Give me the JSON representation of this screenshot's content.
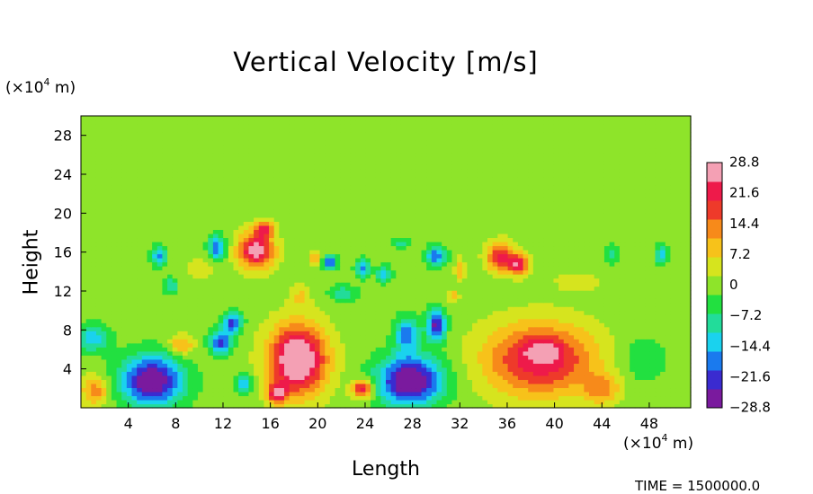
{
  "chart_data": {
    "type": "heatmap",
    "title": "Vertical Velocity [m/s]",
    "xlabel": "Length",
    "ylabel": "Height",
    "x_unit": {
      "prefix": "(×10",
      "exp": "4",
      "suffix": " m)"
    },
    "y_unit": {
      "prefix": "(×10",
      "exp": "4",
      "suffix": " m)"
    },
    "xlim": [
      0,
      51.5
    ],
    "ylim": [
      0,
      30
    ],
    "x_ticks": [
      4,
      8,
      12,
      16,
      20,
      24,
      28,
      32,
      36,
      40,
      44,
      48
    ],
    "x_tick_labels": [
      "4",
      "8",
      "12",
      "16",
      "20",
      "24",
      "28",
      "32",
      "36",
      "40",
      "44",
      "48"
    ],
    "y_ticks": [
      4,
      8,
      12,
      16,
      20,
      24,
      28
    ],
    "y_tick_labels": [
      "4",
      "8",
      "12",
      "16",
      "20",
      "24",
      "28"
    ],
    "colorbar": {
      "min": -28.8,
      "max": 28.8,
      "tick_values": [
        28.8,
        21.6,
        14.4,
        7.2,
        0,
        -7.2,
        -14.4,
        -21.6,
        -28.8
      ],
      "tick_labels": [
        "28.8",
        "21.6",
        "14.4",
        "7.2",
        "0",
        "−7.2",
        "−14.4",
        "−21.6",
        "−28.8"
      ],
      "colors": [
        "#7a1a9e",
        "#3a2bd0",
        "#1a7aee",
        "#1ad2ee",
        "#22dc9a",
        "#22e040",
        "#8ee42a",
        "#d6e41e",
        "#f7c21a",
        "#f78a1a",
        "#ee3a2a",
        "#ee1a4a",
        "#f4a0b4"
      ]
    },
    "background_value": 0,
    "features": [
      {
        "x": 1.2,
        "y": 1.8,
        "amp": 14,
        "sx": 1.2,
        "sy": 1.5
      },
      {
        "x": 6.0,
        "y": 2.8,
        "amp": -30,
        "sx": 2.6,
        "sy": 2.6
      },
      {
        "x": 8.5,
        "y": 6.5,
        "amp": 13,
        "sx": 1.0,
        "sy": 1.0
      },
      {
        "x": 11.8,
        "y": 6.8,
        "amp": -22,
        "sx": 0.9,
        "sy": 1.2
      },
      {
        "x": 12.8,
        "y": 8.8,
        "amp": -22,
        "sx": 0.8,
        "sy": 1.0
      },
      {
        "x": 13.8,
        "y": 2.5,
        "amp": -16,
        "sx": 0.7,
        "sy": 1.0
      },
      {
        "x": 18.3,
        "y": 5.0,
        "amp": 34,
        "sx": 2.4,
        "sy": 3.5
      },
      {
        "x": 16.6,
        "y": 1.5,
        "amp": 22,
        "sx": 0.8,
        "sy": 1.0
      },
      {
        "x": 14.8,
        "y": 16.2,
        "amp": 28,
        "sx": 1.5,
        "sy": 1.8
      },
      {
        "x": 15.5,
        "y": 18.4,
        "amp": 20,
        "sx": 0.8,
        "sy": 0.8
      },
      {
        "x": 11.5,
        "y": 16.5,
        "amp": -19,
        "sx": 0.7,
        "sy": 1.3
      },
      {
        "x": 6.6,
        "y": 15.6,
        "amp": -17,
        "sx": 0.6,
        "sy": 1.0
      },
      {
        "x": 7.6,
        "y": 12.6,
        "amp": -11,
        "sx": 0.6,
        "sy": 0.8
      },
      {
        "x": 21.0,
        "y": 15.0,
        "amp": -20,
        "sx": 0.6,
        "sy": 0.7
      },
      {
        "x": 19.8,
        "y": 15.4,
        "amp": 13,
        "sx": 0.5,
        "sy": 0.7
      },
      {
        "x": 23.8,
        "y": 14.4,
        "amp": -17,
        "sx": 0.6,
        "sy": 0.9
      },
      {
        "x": 25.6,
        "y": 13.8,
        "amp": -15,
        "sx": 0.6,
        "sy": 0.8
      },
      {
        "x": 30.0,
        "y": 15.6,
        "amp": -20,
        "sx": 0.8,
        "sy": 1.0
      },
      {
        "x": 22.2,
        "y": 11.8,
        "amp": -10,
        "sx": 1.2,
        "sy": 0.8
      },
      {
        "x": 23.8,
        "y": 2.0,
        "amp": 24,
        "sx": 0.9,
        "sy": 0.9
      },
      {
        "x": 27.8,
        "y": 2.8,
        "amp": -32,
        "sx": 2.7,
        "sy": 2.5
      },
      {
        "x": 27.5,
        "y": 7.6,
        "amp": -18,
        "sx": 1.0,
        "sy": 1.8
      },
      {
        "x": 30.0,
        "y": 8.5,
        "amp": -26,
        "sx": 0.8,
        "sy": 1.6
      },
      {
        "x": 32.0,
        "y": 14.2,
        "amp": 10,
        "sx": 0.4,
        "sy": 1.2
      },
      {
        "x": 31.5,
        "y": 11.5,
        "amp": 11,
        "sx": 0.4,
        "sy": 0.6
      },
      {
        "x": 35.5,
        "y": 15.5,
        "amp": 22,
        "sx": 1.2,
        "sy": 1.5
      },
      {
        "x": 37.0,
        "y": 14.7,
        "amp": 22,
        "sx": 0.8,
        "sy": 1.0
      },
      {
        "x": 38.8,
        "y": 5.0,
        "amp": 24,
        "sx": 4.6,
        "sy": 3.7
      },
      {
        "x": 39.0,
        "y": 6.0,
        "amp": 8,
        "sx": 1.5,
        "sy": 1.0
      },
      {
        "x": 44.0,
        "y": 2.0,
        "amp": 12,
        "sx": 1.5,
        "sy": 1.5
      },
      {
        "x": 44.8,
        "y": 15.8,
        "amp": -10,
        "sx": 0.5,
        "sy": 0.9
      },
      {
        "x": 49.0,
        "y": 15.8,
        "amp": -15,
        "sx": 0.5,
        "sy": 0.9
      },
      {
        "x": 1.0,
        "y": 7.2,
        "amp": -14,
        "sx": 1.4,
        "sy": 1.4
      },
      {
        "x": 10.0,
        "y": 14.4,
        "amp": 6,
        "sx": 1.2,
        "sy": 1.0
      },
      {
        "x": 42.0,
        "y": 13.0,
        "amp": 5,
        "sx": 2.0,
        "sy": 1.0
      },
      {
        "x": 27.0,
        "y": 17.0,
        "amp": -8,
        "sx": 0.8,
        "sy": 0.6
      },
      {
        "x": 18.5,
        "y": 11.5,
        "amp": 7,
        "sx": 0.8,
        "sy": 1.2
      },
      {
        "x": 47.5,
        "y": 5.0,
        "amp": -6,
        "sx": 2.0,
        "sy": 2.5
      }
    ]
  },
  "footer": {
    "time_label": "TIME = 1500000.0"
  }
}
